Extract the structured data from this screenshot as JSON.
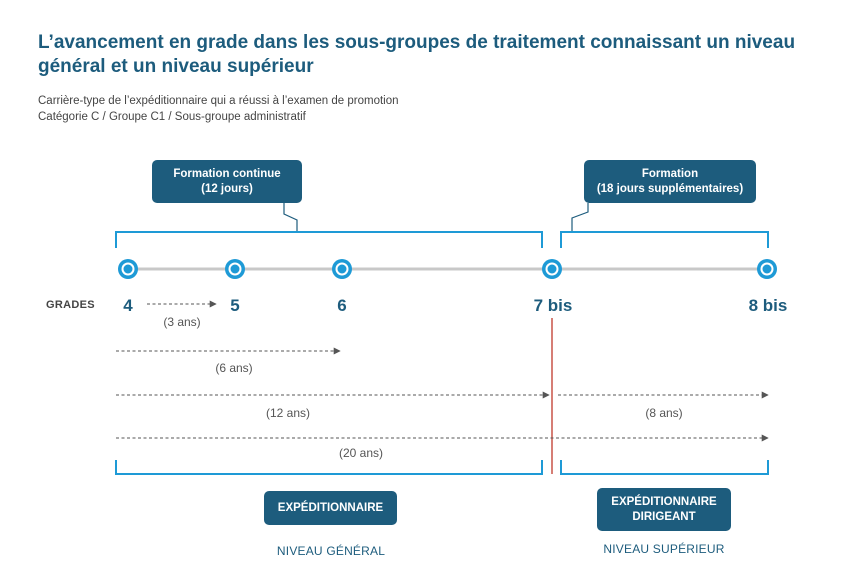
{
  "title": "L’avancement en grade dans les sous-groupes de traitement connaissant un niveau général et un niveau supérieur",
  "subtitle": {
    "line1": "Carrière-type de l’expéditionnaire qui a réussi à l’examen de promotion",
    "line2": "Catégorie C / Groupe C1 / Sous-groupe administratif"
  },
  "trainings": [
    {
      "line1": "Formation continue",
      "line2": "(12 jours)"
    },
    {
      "line1": "Formation",
      "line2": "(18 jours supplémentaires)"
    }
  ],
  "grades_label": "GRADES",
  "grades": [
    "4",
    "5",
    "6",
    "7 bis",
    "8 bis"
  ],
  "durations": [
    "(3 ans)",
    "(6 ans)",
    "(12 ans)",
    "(8 ans)",
    "(20 ans)"
  ],
  "roles": [
    {
      "line1": "EXPÉDITIONNAIRE",
      "line2": ""
    },
    {
      "line1": "EXPÉDITIONNAIRE",
      "line2": "DIRIGEANT"
    }
  ],
  "levels": [
    "NIVEAU GÉNÉRAL",
    "NIVEAU SUPÉRIEUR"
  ],
  "colors": {
    "primary": "#1d5c7d",
    "accent": "#1e9ad6",
    "timeline": "#c8c8c8",
    "divider": "#c0392b",
    "arrow": "#555555"
  }
}
